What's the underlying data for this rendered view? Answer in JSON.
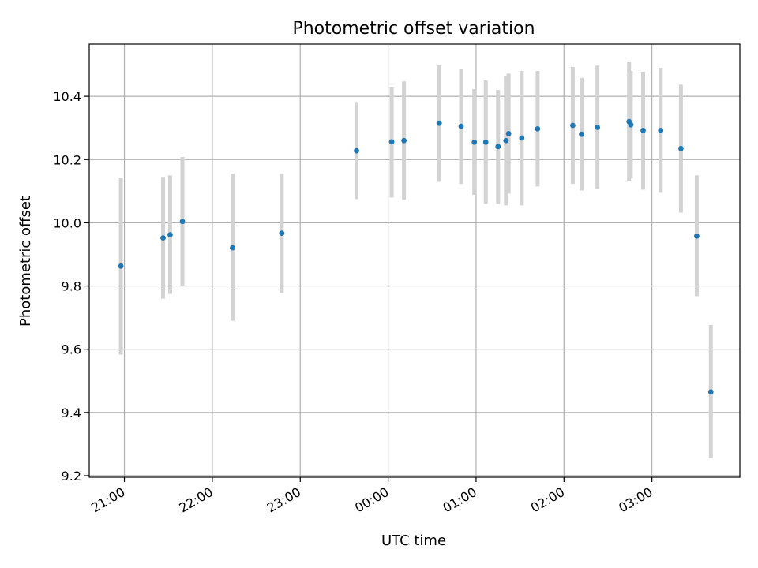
{
  "chart_data": {
    "type": "scatter",
    "title": "Photometric offset variation",
    "xlabel": "UTC time",
    "ylabel": "Photometric offset",
    "x_unit": "hours relative to 00:00 UTC",
    "xlim": [
      -3.4,
      4.0
    ],
    "ylim": [
      9.195,
      10.565
    ],
    "x_ticks": [
      {
        "value": -3,
        "label": "21:00"
      },
      {
        "value": -2,
        "label": "22:00"
      },
      {
        "value": -1,
        "label": "23:00"
      },
      {
        "value": 0,
        "label": "00:00"
      },
      {
        "value": 1,
        "label": "01:00"
      },
      {
        "value": 2,
        "label": "02:00"
      },
      {
        "value": 3,
        "label": "03:00"
      }
    ],
    "y_ticks": [
      {
        "value": 9.2,
        "label": "9.2"
      },
      {
        "value": 9.4,
        "label": "9.4"
      },
      {
        "value": 9.6,
        "label": "9.6"
      },
      {
        "value": 9.8,
        "label": "9.8"
      },
      {
        "value": 10.0,
        "label": "10.0"
      },
      {
        "value": 10.2,
        "label": "10.2"
      },
      {
        "value": 10.4,
        "label": "10.4"
      }
    ],
    "grid": true,
    "marker_color": "#1f77b4",
    "errorbar_color": "#d3d3d3",
    "points": [
      {
        "x": -3.04,
        "y": 9.863,
        "lo": 9.583,
        "hi": 10.143
      },
      {
        "x": -2.56,
        "y": 9.952,
        "lo": 9.76,
        "hi": 10.145
      },
      {
        "x": -2.48,
        "y": 9.962,
        "lo": 9.775,
        "hi": 10.15
      },
      {
        "x": -2.34,
        "y": 10.004,
        "lo": 9.8,
        "hi": 10.208
      },
      {
        "x": -1.77,
        "y": 9.921,
        "lo": 9.69,
        "hi": 10.155
      },
      {
        "x": -1.21,
        "y": 9.967,
        "lo": 9.778,
        "hi": 10.155
      },
      {
        "x": -0.36,
        "y": 10.228,
        "lo": 10.075,
        "hi": 10.382
      },
      {
        "x": 0.04,
        "y": 10.256,
        "lo": 10.08,
        "hi": 10.43
      },
      {
        "x": 0.18,
        "y": 10.26,
        "lo": 10.073,
        "hi": 10.447
      },
      {
        "x": 0.58,
        "y": 10.315,
        "lo": 10.13,
        "hi": 10.498
      },
      {
        "x": 0.83,
        "y": 10.305,
        "lo": 10.123,
        "hi": 10.485
      },
      {
        "x": 0.98,
        "y": 10.255,
        "lo": 10.088,
        "hi": 10.423
      },
      {
        "x": 1.11,
        "y": 10.255,
        "lo": 10.06,
        "hi": 10.45
      },
      {
        "x": 1.25,
        "y": 10.241,
        "lo": 10.06,
        "hi": 10.42
      },
      {
        "x": 1.34,
        "y": 10.26,
        "lo": 10.055,
        "hi": 10.465
      },
      {
        "x": 1.37,
        "y": 10.282,
        "lo": 10.092,
        "hi": 10.472
      },
      {
        "x": 1.52,
        "y": 10.268,
        "lo": 10.055,
        "hi": 10.48
      },
      {
        "x": 1.7,
        "y": 10.297,
        "lo": 10.115,
        "hi": 10.48
      },
      {
        "x": 2.1,
        "y": 10.308,
        "lo": 10.123,
        "hi": 10.493
      },
      {
        "x": 2.2,
        "y": 10.28,
        "lo": 10.102,
        "hi": 10.458
      },
      {
        "x": 2.38,
        "y": 10.302,
        "lo": 10.107,
        "hi": 10.497
      },
      {
        "x": 2.74,
        "y": 10.32,
        "lo": 10.133,
        "hi": 10.508
      },
      {
        "x": 2.76,
        "y": 10.31,
        "lo": 10.14,
        "hi": 10.48
      },
      {
        "x": 2.9,
        "y": 10.292,
        "lo": 10.105,
        "hi": 10.478
      },
      {
        "x": 3.1,
        "y": 10.292,
        "lo": 10.095,
        "hi": 10.49
      },
      {
        "x": 3.33,
        "y": 10.235,
        "lo": 10.032,
        "hi": 10.437
      },
      {
        "x": 3.51,
        "y": 9.958,
        "lo": 9.768,
        "hi": 10.15
      },
      {
        "x": 3.67,
        "y": 9.465,
        "lo": 9.255,
        "hi": 9.677
      }
    ]
  }
}
